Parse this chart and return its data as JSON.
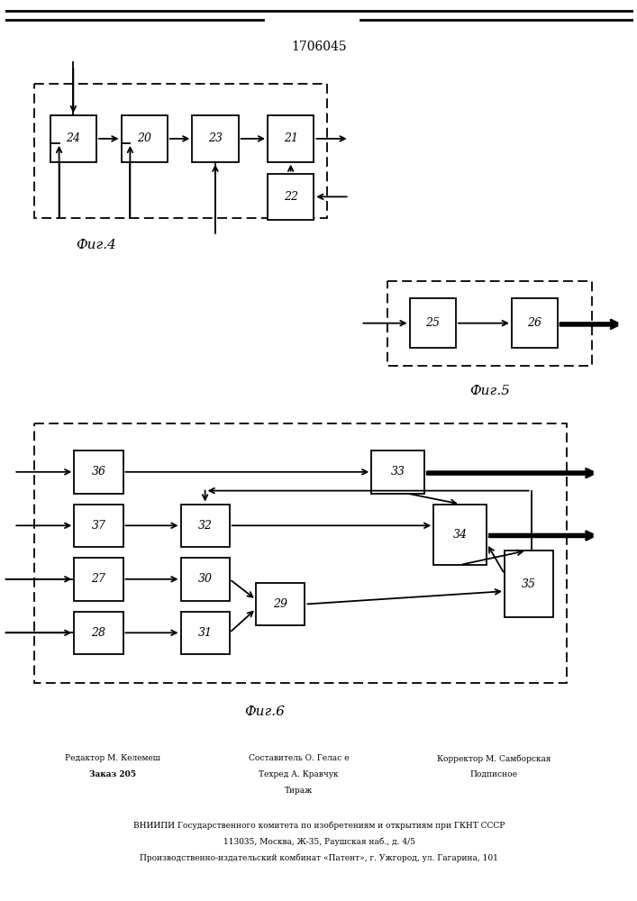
{
  "title": "1706045",
  "bg_color": "#ffffff",
  "fig4_caption": "Фиг.4",
  "fig5_caption": "Фиг.5",
  "fig6_caption": "Фиг.6",
  "footer_col1_line1": "Редактор М. Келемеш",
  "footer_col1_line2": "Заказ 205",
  "footer_col2_line1": "Составитель О. Гелас е",
  "footer_col2_line2": "Техред А. Кравчук",
  "footer_col2_line3": "Тираж",
  "footer_col3_line1": "Корректор М. Самборская",
  "footer_col3_line2": "Подписное",
  "footer_line4": "ВНИИПИ Государственного комитета по изобретениям и открытиям при ГКНТ СССР",
  "footer_line5": "113035, Москва, Ж-35, Раушская наб., д. 4/5",
  "footer_line6": "Производственно-издательский комбинат «Патент», г. Ужгород, ул. Гагарина, 101"
}
